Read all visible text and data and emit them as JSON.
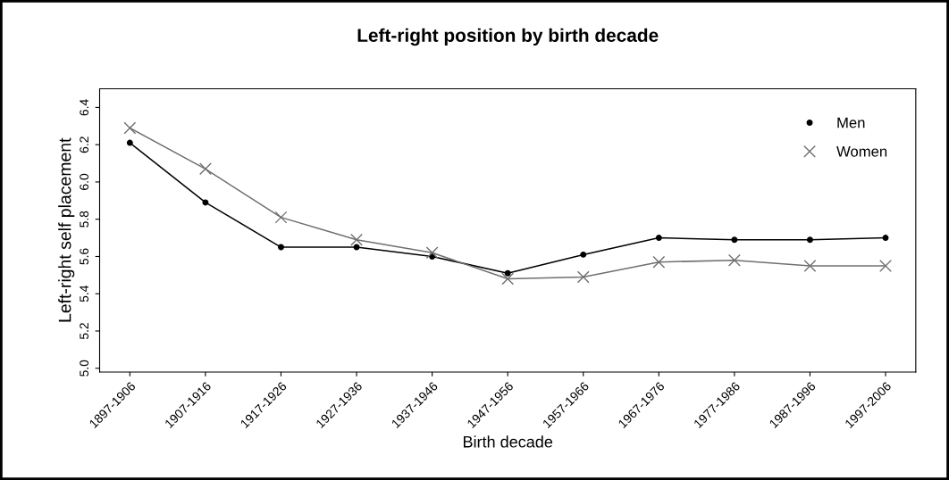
{
  "chart_data": {
    "type": "line",
    "title": "Left-right position by birth decade",
    "xlabel": "Birth decade",
    "ylabel": "Left-right self placement",
    "categories": [
      "1897-1906",
      "1907-1916",
      "1917-1926",
      "1927-1936",
      "1937-1946",
      "1947-1956",
      "1957-1966",
      "1967-1976",
      "1977-1986",
      "1987-1996",
      "1997-2006"
    ],
    "series": [
      {
        "name": "Men",
        "color": "#000000",
        "marker": "circle",
        "values": [
          6.21,
          5.89,
          5.65,
          5.65,
          5.6,
          5.51,
          5.61,
          5.7,
          5.69,
          5.69,
          5.7
        ]
      },
      {
        "name": "Women",
        "color": "#707070",
        "marker": "cross",
        "values": [
          6.29,
          6.07,
          5.81,
          5.69,
          5.62,
          5.48,
          5.49,
          5.57,
          5.58,
          5.55,
          5.55
        ]
      }
    ],
    "ylim": [
      4.98,
      6.5
    ],
    "yticks": [
      {
        "value": 5,
        "label": "5.0"
      },
      5.2,
      5.4,
      5.6,
      5.8,
      {
        "value": 6,
        "label": "6.0"
      },
      6.2,
      6.4
    ],
    "grid": false,
    "legend": "top right",
    "line_style": "solid"
  }
}
